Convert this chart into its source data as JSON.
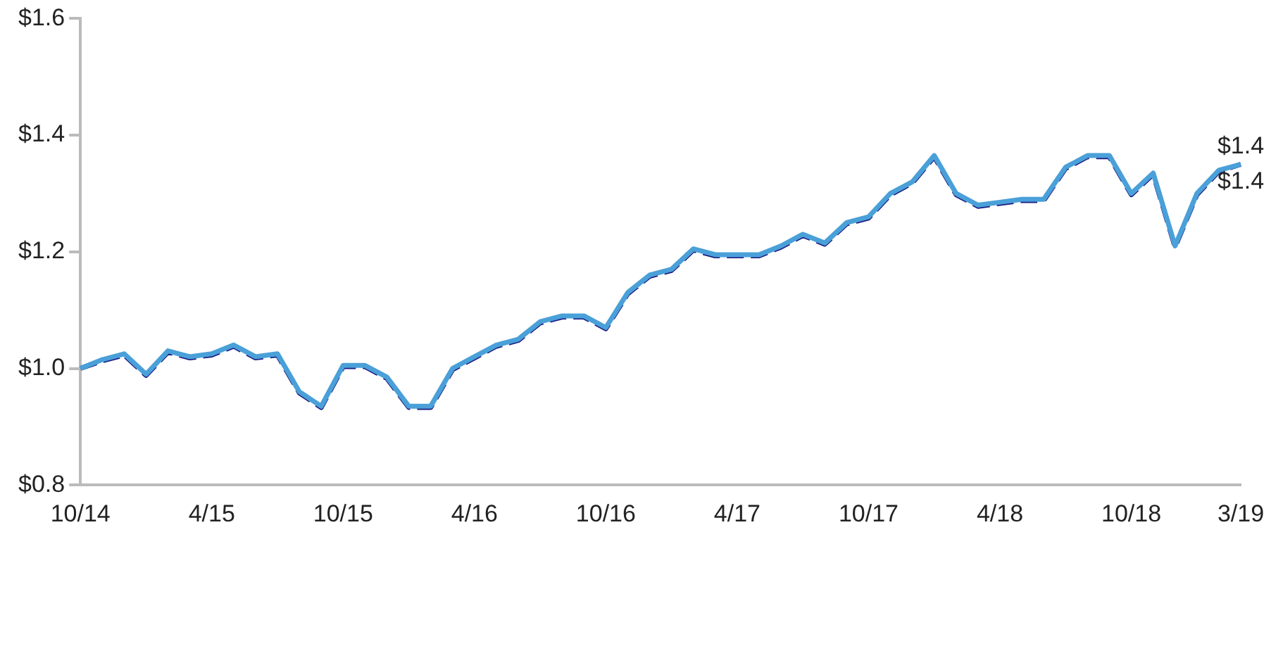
{
  "chart_data": {
    "type": "line",
    "categories": [
      "10/14",
      null,
      null,
      null,
      null,
      null,
      "4/15",
      null,
      null,
      null,
      null,
      null,
      "10/15",
      null,
      null,
      null,
      null,
      null,
      "4/16",
      null,
      null,
      null,
      null,
      null,
      "10/16",
      null,
      null,
      null,
      null,
      null,
      "4/17",
      null,
      null,
      null,
      null,
      null,
      "10/17",
      null,
      null,
      null,
      null,
      null,
      "4/18",
      null,
      null,
      null,
      null,
      null,
      "10/18",
      null,
      null,
      null,
      null,
      "3/19"
    ],
    "series": [
      {
        "color": "#1a1a80",
        "line_style": "dashed",
        "values": [
          1.0,
          1.013,
          1.023,
          0.988,
          1.028,
          1.018,
          1.023,
          1.038,
          1.018,
          1.023,
          0.958,
          0.933,
          1.003,
          1.003,
          0.983,
          0.933,
          0.933,
          0.998,
          1.018,
          1.038,
          1.048,
          1.078,
          1.088,
          1.088,
          1.068,
          1.128,
          1.158,
          1.168,
          1.203,
          1.193,
          1.193,
          1.193,
          1.208,
          1.228,
          1.213,
          1.248,
          1.258,
          1.298,
          1.318,
          1.363,
          1.298,
          1.278,
          1.283,
          1.288,
          1.288,
          1.343,
          1.363,
          1.363,
          1.298,
          1.333,
          1.208,
          1.298,
          1.338,
          1.35
        ],
        "value_labels": [
          null,
          null,
          null,
          null,
          null,
          null,
          null,
          null,
          null,
          null,
          null,
          null,
          null,
          null,
          null,
          null,
          null,
          null,
          null,
          null,
          null,
          null,
          null,
          null,
          null,
          null,
          null,
          null,
          null,
          null,
          null,
          null,
          null,
          null,
          null,
          null,
          null,
          null,
          null,
          null,
          null,
          null,
          null,
          null,
          null,
          null,
          null,
          null,
          null,
          null,
          null,
          null,
          null,
          "$1.4"
        ]
      },
      {
        "color": "#4aa0d8",
        "line_style": "solid",
        "values": [
          1.0,
          1.015,
          1.025,
          0.99,
          1.03,
          1.02,
          1.025,
          1.04,
          1.02,
          1.025,
          0.96,
          0.935,
          1.005,
          1.005,
          0.985,
          0.935,
          0.935,
          1.0,
          1.02,
          1.04,
          1.05,
          1.08,
          1.09,
          1.09,
          1.07,
          1.13,
          1.16,
          1.17,
          1.205,
          1.195,
          1.195,
          1.195,
          1.21,
          1.23,
          1.215,
          1.25,
          1.26,
          1.3,
          1.32,
          1.365,
          1.3,
          1.28,
          1.285,
          1.29,
          1.29,
          1.345,
          1.365,
          1.365,
          1.3,
          1.335,
          1.21,
          1.3,
          1.34,
          1.35
        ],
        "value_labels": [
          null,
          null,
          null,
          null,
          null,
          null,
          null,
          null,
          null,
          null,
          null,
          null,
          null,
          null,
          null,
          null,
          null,
          null,
          null,
          null,
          null,
          null,
          null,
          null,
          null,
          null,
          null,
          null,
          null,
          null,
          null,
          null,
          null,
          null,
          null,
          null,
          null,
          null,
          null,
          null,
          null,
          null,
          null,
          null,
          null,
          null,
          null,
          null,
          null,
          null,
          null,
          null,
          null,
          "$1.4"
        ]
      }
    ],
    "ylim": [
      0.8,
      1.6
    ],
    "yticks": [
      {
        "value": 0.8,
        "label": "$0.8"
      },
      {
        "value": 1.0,
        "label": "$1.0"
      },
      {
        "value": 1.2,
        "label": "$1.2"
      },
      {
        "value": 1.4,
        "label": "$1.4"
      },
      {
        "value": 1.6,
        "label": "$1.6"
      }
    ],
    "grid": false,
    "legend": false,
    "marker": "none"
  }
}
